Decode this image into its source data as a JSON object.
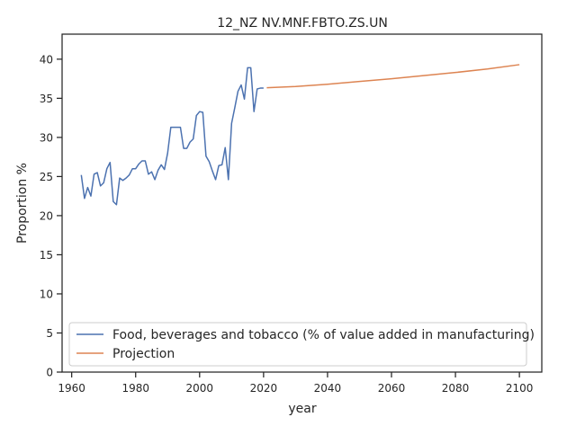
{
  "chart_data": {
    "type": "line",
    "title": "12_NZ NV.MNF.FBTO.ZS.UN",
    "xlabel": "year",
    "ylabel": "Proportion %",
    "xlim": [
      1957,
      2107
    ],
    "ylim": [
      0,
      43.2
    ],
    "xticks": [
      1960,
      1980,
      2000,
      2020,
      2040,
      2060,
      2080,
      2100
    ],
    "yticks": [
      0,
      5,
      10,
      15,
      20,
      25,
      30,
      35,
      40
    ],
    "grid": false,
    "legend_position": "lower-left",
    "series": [
      {
        "name": "Food, beverages and tobacco (% of value added in manufacturing)",
        "color": "#4c72b0",
        "x": [
          1963,
          1964,
          1965,
          1966,
          1967,
          1968,
          1969,
          1970,
          1971,
          1972,
          1973,
          1974,
          1975,
          1976,
          1977,
          1978,
          1979,
          1980,
          1981,
          1982,
          1983,
          1984,
          1985,
          1986,
          1987,
          1988,
          1989,
          1990,
          1991,
          1992,
          1993,
          1994,
          1995,
          1996,
          1997,
          1998,
          1999,
          2000,
          2001,
          2002,
          2003,
          2004,
          2005,
          2006,
          2007,
          2008,
          2009,
          2010,
          2011,
          2012,
          2013,
          2014,
          2015,
          2016,
          2017,
          2018,
          2019,
          2020
        ],
        "y": [
          25.2,
          22.2,
          23.6,
          22.5,
          25.3,
          25.5,
          23.8,
          24.2,
          26.0,
          26.8,
          21.8,
          21.4,
          24.8,
          24.5,
          24.8,
          25.2,
          26.0,
          26.0,
          26.6,
          27.0,
          27.0,
          25.3,
          25.6,
          24.6,
          25.8,
          26.5,
          25.9,
          28.0,
          31.3,
          31.3,
          31.3,
          31.3,
          28.6,
          28.6,
          29.4,
          29.8,
          32.8,
          33.3,
          33.2,
          27.6,
          26.9,
          25.7,
          24.6,
          26.4,
          26.5,
          28.7,
          24.6,
          31.8,
          33.8,
          35.9,
          36.7,
          34.9,
          38.9,
          38.9,
          33.3,
          36.2,
          36.3,
          36.3
        ]
      },
      {
        "name": "Projection",
        "color": "#dd8452",
        "x": [
          2021,
          2030,
          2040,
          2050,
          2060,
          2070,
          2080,
          2090,
          2100
        ],
        "y": [
          36.35,
          36.5,
          36.8,
          37.15,
          37.5,
          37.9,
          38.3,
          38.75,
          39.3
        ]
      }
    ]
  }
}
